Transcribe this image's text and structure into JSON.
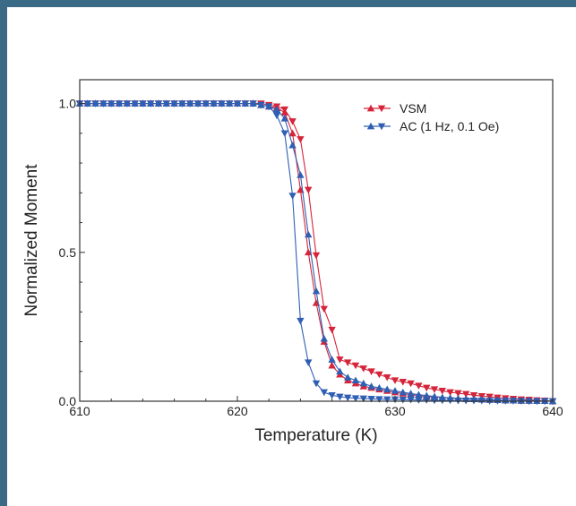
{
  "chart_data": {
    "type": "scatter",
    "xlabel": "Temperature (K)",
    "ylabel": "Normalized Moment",
    "xlim": [
      610,
      640
    ],
    "ylim": [
      0,
      1.08
    ],
    "xticks": [
      610,
      620,
      630,
      640
    ],
    "yticks": [
      0.0,
      0.5,
      1.0
    ],
    "xtick_labels": [
      "610",
      "620",
      "630",
      "640"
    ],
    "ytick_labels": [
      "0.0",
      "0.5",
      "1.0"
    ],
    "grid": false,
    "legend_position": "top-right",
    "legend": [
      {
        "label": "VSM",
        "color": "#d6243a"
      },
      {
        "label": "AC (1 Hz, 0.1 Oe)",
        "color": "#2f5fb3"
      }
    ],
    "series": [
      {
        "name": "VSM",
        "color": "#d6243a",
        "direction": "up",
        "marker": "triangle-up",
        "x": [
          610,
          610.5,
          611,
          611.5,
          612,
          612.5,
          613,
          613.5,
          614,
          614.5,
          615,
          615.5,
          616,
          616.5,
          617,
          617.5,
          618,
          618.5,
          619,
          619.5,
          620,
          620.5,
          621,
          621.5,
          622,
          622.5,
          623,
          623.5,
          624,
          624.5,
          625,
          625.5,
          626,
          626.5,
          627,
          627.5,
          628,
          628.5,
          629,
          629.5,
          630,
          630.5,
          631,
          631.5,
          632,
          632.5,
          633,
          633.5,
          634,
          634.5,
          635,
          635.5,
          636,
          636.5,
          637,
          637.5,
          638,
          638.5,
          639,
          639.5,
          640
        ],
        "y": [
          1.0,
          1.0,
          1.0,
          1.0,
          1.0,
          1.0,
          1.0,
          1.0,
          1.0,
          1.0,
          1.0,
          1.0,
          1.0,
          1.0,
          1.0,
          1.0,
          1.0,
          1.0,
          1.0,
          1.0,
          1.0,
          1.0,
          1.0,
          0.995,
          0.99,
          0.985,
          0.97,
          0.9,
          0.71,
          0.5,
          0.33,
          0.2,
          0.12,
          0.09,
          0.07,
          0.06,
          0.05,
          0.045,
          0.04,
          0.035,
          0.03,
          0.026,
          0.022,
          0.019,
          0.016,
          0.014,
          0.012,
          0.01,
          0.009,
          0.008,
          0.007,
          0.006,
          0.005,
          0.004,
          0.003,
          0.003,
          0.002,
          0.002,
          0.001,
          0.001,
          0.0
        ]
      },
      {
        "name": "VSM",
        "color": "#d6243a",
        "direction": "down",
        "marker": "triangle-down",
        "x": [
          610,
          610.5,
          611,
          611.5,
          612,
          612.5,
          613,
          613.5,
          614,
          614.5,
          615,
          615.5,
          616,
          616.5,
          617,
          617.5,
          618,
          618.5,
          619,
          619.5,
          620,
          620.5,
          621,
          621.5,
          622,
          622.5,
          623,
          623.5,
          624,
          624.5,
          625,
          625.5,
          626,
          626.5,
          627,
          627.5,
          628,
          628.5,
          629,
          629.5,
          630,
          630.5,
          631,
          631.5,
          632,
          632.5,
          633,
          633.5,
          634,
          634.5,
          635,
          635.5,
          636,
          636.5,
          637,
          637.5,
          638,
          638.5,
          639,
          639.5,
          640
        ],
        "y": [
          1.0,
          1.0,
          1.0,
          1.0,
          1.0,
          1.0,
          1.0,
          1.0,
          1.0,
          1.0,
          1.0,
          1.0,
          1.0,
          1.0,
          1.0,
          1.0,
          1.0,
          1.0,
          1.0,
          1.0,
          1.0,
          1.0,
          1.0,
          1.0,
          0.995,
          0.99,
          0.98,
          0.94,
          0.88,
          0.71,
          0.49,
          0.31,
          0.24,
          0.14,
          0.13,
          0.12,
          0.11,
          0.1,
          0.09,
          0.08,
          0.07,
          0.065,
          0.06,
          0.052,
          0.045,
          0.04,
          0.035,
          0.03,
          0.027,
          0.024,
          0.02,
          0.017,
          0.015,
          0.012,
          0.01,
          0.008,
          0.006,
          0.005,
          0.003,
          0.002,
          0.0
        ]
      },
      {
        "name": "AC (1 Hz, 0.1 Oe)",
        "color": "#2f5fb3",
        "direction": "up",
        "marker": "triangle-up",
        "x": [
          610,
          610.5,
          611,
          611.5,
          612,
          612.5,
          613,
          613.5,
          614,
          614.5,
          615,
          615.5,
          616,
          616.5,
          617,
          617.5,
          618,
          618.5,
          619,
          619.5,
          620,
          620.5,
          621,
          621.5,
          622,
          622.5,
          623,
          623.5,
          624,
          624.5,
          625,
          625.5,
          626,
          626.5,
          627,
          627.5,
          628,
          628.5,
          629,
          629.5,
          630,
          630.5,
          631,
          631.5,
          632,
          632.5,
          633,
          633.5,
          634,
          634.5,
          635,
          635.5,
          636,
          636.5,
          637,
          637.5,
          638,
          638.5,
          639,
          639.5,
          640
        ],
        "y": [
          1.0,
          1.0,
          1.0,
          1.0,
          1.0,
          1.0,
          1.0,
          1.0,
          1.0,
          1.0,
          1.0,
          1.0,
          1.0,
          1.0,
          1.0,
          1.0,
          1.0,
          1.0,
          1.0,
          1.0,
          1.0,
          1.0,
          1.0,
          0.995,
          0.99,
          0.98,
          0.95,
          0.86,
          0.76,
          0.56,
          0.37,
          0.21,
          0.14,
          0.1,
          0.08,
          0.07,
          0.06,
          0.05,
          0.045,
          0.04,
          0.035,
          0.03,
          0.026,
          0.022,
          0.019,
          0.016,
          0.013,
          0.011,
          0.009,
          0.008,
          0.007,
          0.006,
          0.005,
          0.004,
          0.003,
          0.003,
          0.002,
          0.002,
          0.001,
          0.001,
          0.0
        ]
      },
      {
        "name": "AC (1 Hz, 0.1 Oe)",
        "color": "#2f5fb3",
        "direction": "down",
        "marker": "triangle-down",
        "x": [
          610,
          610.5,
          611,
          611.5,
          612,
          612.5,
          613,
          613.5,
          614,
          614.5,
          615,
          615.5,
          616,
          616.5,
          617,
          617.5,
          618,
          618.5,
          619,
          619.5,
          620,
          620.5,
          621,
          621.5,
          622,
          622.5,
          623,
          623.5,
          624,
          624.5,
          625,
          625.5,
          626,
          626.5,
          627,
          627.5,
          628,
          628.5,
          629,
          629.5,
          630,
          630.5,
          631,
          631.5,
          632,
          632.5,
          633,
          633.5,
          634,
          634.5,
          635,
          635.5,
          636,
          636.5,
          637,
          637.5,
          638,
          638.5,
          639,
          639.5,
          640
        ],
        "y": [
          1.0,
          1.0,
          1.0,
          1.0,
          1.0,
          1.0,
          1.0,
          1.0,
          1.0,
          1.0,
          1.0,
          1.0,
          1.0,
          1.0,
          1.0,
          1.0,
          1.0,
          1.0,
          1.0,
          1.0,
          1.0,
          1.0,
          1.0,
          0.995,
          0.99,
          0.96,
          0.9,
          0.69,
          0.27,
          0.13,
          0.06,
          0.03,
          0.02,
          0.015,
          0.012,
          0.01,
          0.009,
          0.008,
          0.007,
          0.006,
          0.006,
          0.005,
          0.005,
          0.004,
          0.004,
          0.003,
          0.003,
          0.003,
          0.002,
          0.002,
          0.002,
          0.002,
          0.001,
          0.001,
          0.001,
          0.001,
          0.001,
          0.0,
          0.0,
          0.0,
          0.0
        ]
      }
    ]
  }
}
